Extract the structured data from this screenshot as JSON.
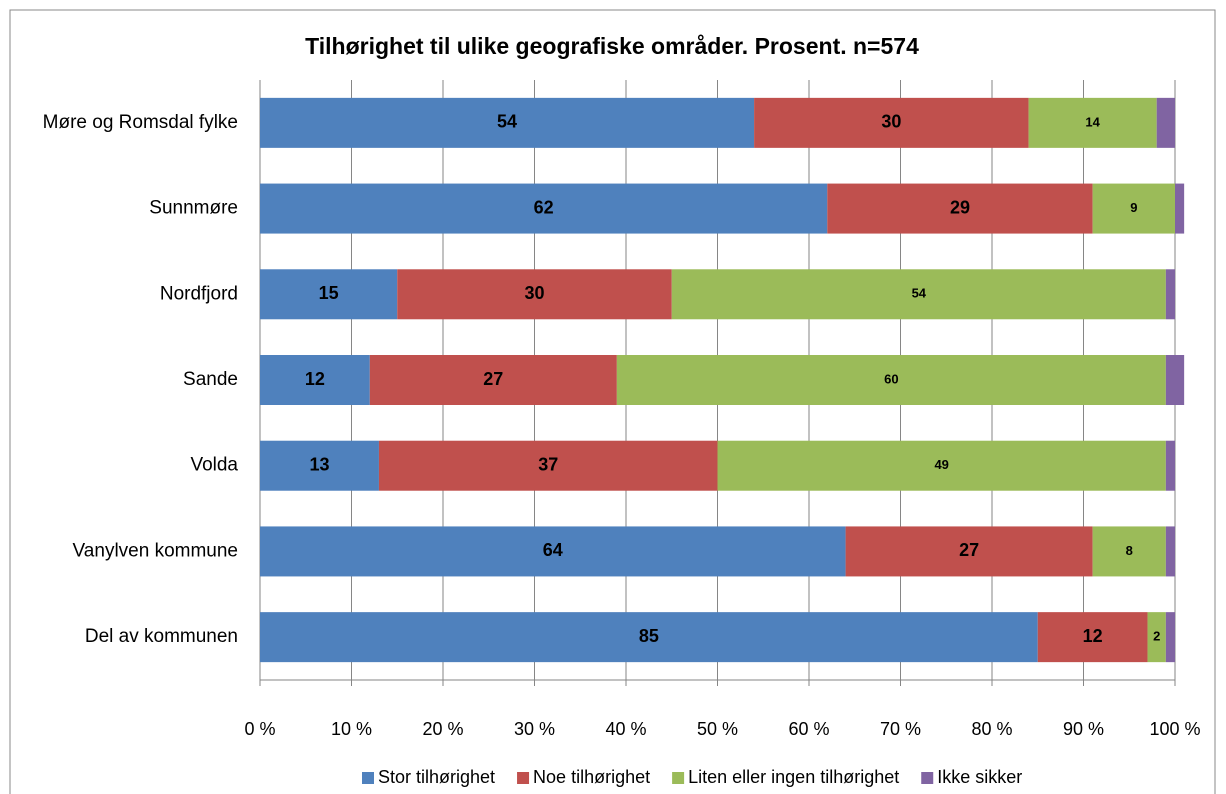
{
  "chart_data": {
    "type": "stacked_barh",
    "title": "Tilhørighet til ulike geografiske områder. Prosent. n=574",
    "categories": [
      "Møre og Romsdal fylke",
      "Sunnmøre",
      "Nordfjord",
      "Sande",
      "Volda",
      "Vanylven  kommune",
      "Del av kommunen"
    ],
    "series": [
      {
        "name": "Stor tilhørighet",
        "color": "#4f81bd",
        "values": [
          54,
          62,
          15,
          12,
          13,
          64,
          85
        ],
        "labels": true
      },
      {
        "name": "Noe tilhørighet",
        "color": "#c0504d",
        "values": [
          30,
          29,
          30,
          27,
          37,
          27,
          12
        ],
        "labels": true
      },
      {
        "name": "Liten eller ingen tilhørighet",
        "color": "#9bbb59",
        "values": [
          14,
          9,
          54,
          60,
          49,
          8,
          2
        ],
        "labels": true
      },
      {
        "name": "Ikke sikker",
        "color": "#8064a2",
        "values": [
          2,
          1,
          1,
          2,
          1,
          1,
          1
        ],
        "labels": false
      }
    ],
    "xlim": [
      0,
      100
    ],
    "xticks": [
      {
        "value": 0,
        "label": "0 %"
      },
      {
        "value": 10,
        "label": "10 %"
      },
      {
        "value": 20,
        "label": "20 %"
      },
      {
        "value": 30,
        "label": "30 %"
      },
      {
        "value": 40,
        "label": "40 %"
      },
      {
        "value": 50,
        "label": "50 %"
      },
      {
        "value": 60,
        "label": "60 %"
      },
      {
        "value": 70,
        "label": "70 %"
      },
      {
        "value": 80,
        "label": "80 %"
      },
      {
        "value": 90,
        "label": "90 %"
      },
      {
        "value": 100,
        "label": "100 %"
      }
    ],
    "grid": true,
    "legend": "bottom"
  }
}
